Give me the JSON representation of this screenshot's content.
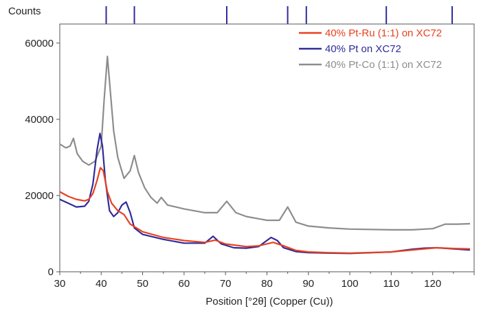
{
  "chart_data": {
    "type": "line",
    "title": "",
    "ylabel": "Counts",
    "xlabel": "Position [°2θ] (Copper (Cu))",
    "xlim": [
      30,
      130
    ],
    "ylim": [
      0,
      65000
    ],
    "xticks": [
      30,
      40,
      50,
      60,
      70,
      80,
      90,
      100,
      110,
      120
    ],
    "yticks": [
      0,
      20000,
      40000,
      60000
    ],
    "legend_position": "top-right",
    "reference_peaks": [
      41.2,
      48.0,
      70.3,
      85.0,
      89.5,
      108.8,
      124.7
    ],
    "series": [
      {
        "name": "40% Pt-Ru (1:1) on XC72",
        "color": "#e8401c",
        "x": [
          30,
          32,
          34,
          36,
          37,
          38,
          39,
          39.8,
          40.5,
          41.5,
          42.5,
          44,
          45.5,
          47,
          50,
          55,
          60,
          65,
          67.5,
          70,
          75,
          78,
          81.5,
          84,
          87,
          90,
          95,
          100,
          110,
          115,
          118,
          121,
          125,
          129
        ],
        "y": [
          21000,
          19800,
          19000,
          18600,
          19000,
          20500,
          24000,
          27300,
          26500,
          21000,
          18000,
          16000,
          15000,
          12500,
          10500,
          9000,
          8200,
          7700,
          8300,
          7300,
          6600,
          6800,
          7700,
          6800,
          5600,
          5200,
          5000,
          4900,
          5200,
          5700,
          6000,
          6300,
          6100,
          6000
        ]
      },
      {
        "name": "40% Pt on XC72",
        "color": "#2e2a9c",
        "x": [
          30,
          32,
          34,
          36,
          37,
          38,
          39,
          39.7,
          40.3,
          41,
          42,
          43,
          44,
          45,
          46,
          47,
          48,
          50,
          55,
          60,
          65,
          67,
          69,
          72,
          75,
          78,
          81,
          82.5,
          84,
          87,
          90,
          95,
          100,
          110,
          115,
          118,
          121,
          125,
          129
        ],
        "y": [
          19000,
          18000,
          17000,
          17200,
          18500,
          23000,
          32000,
          36300,
          33000,
          24000,
          16000,
          14500,
          15500,
          17500,
          18300,
          15500,
          11500,
          9800,
          8500,
          7500,
          7500,
          9300,
          7300,
          6300,
          6200,
          6600,
          9000,
          8200,
          6300,
          5300,
          5000,
          4900,
          4800,
          5200,
          5900,
          6200,
          6300,
          6000,
          5700
        ]
      },
      {
        "name": "40% Pt-Co (1:1) on XC72",
        "color": "#8c8c8c",
        "x": [
          30,
          31.5,
          32.5,
          33.3,
          34.2,
          35.5,
          37,
          38.5,
          40,
          40.7,
          41.5,
          42.3,
          43,
          44,
          45.5,
          47,
          48,
          49,
          50.5,
          52,
          53.5,
          54.5,
          56,
          60,
          65,
          68,
          70.3,
          72.5,
          75,
          80,
          83,
          85,
          87,
          90,
          95,
          100,
          110,
          115,
          120,
          123,
          126,
          129
        ],
        "y": [
          33500,
          32500,
          33000,
          35000,
          31000,
          29000,
          28000,
          29000,
          33000,
          45000,
          56500,
          46000,
          37000,
          30000,
          24500,
          26500,
          30500,
          26000,
          22000,
          19500,
          18000,
          19500,
          17500,
          16500,
          15500,
          15500,
          18500,
          15500,
          14500,
          13500,
          13500,
          17000,
          13000,
          12000,
          11500,
          11200,
          11000,
          11000,
          11300,
          12500,
          12500,
          12600
        ]
      }
    ]
  }
}
